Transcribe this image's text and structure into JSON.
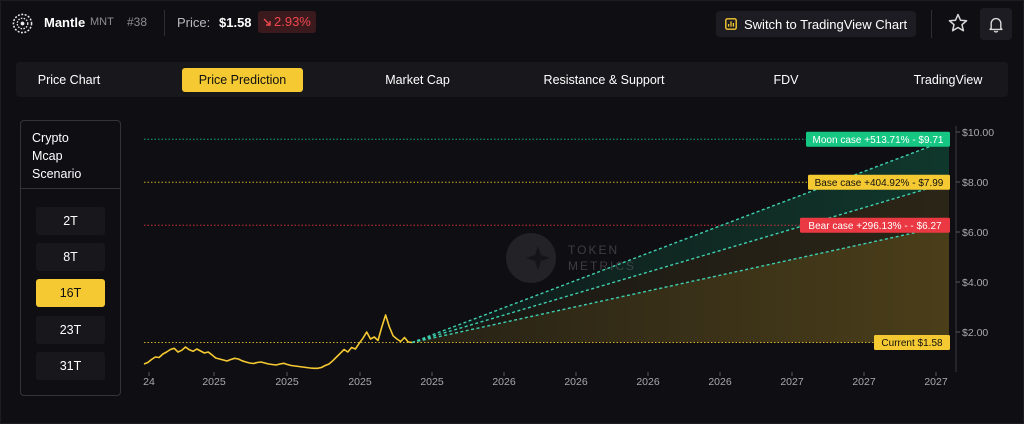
{
  "header": {
    "coin_name": "Mantle",
    "coin_symbol": "MNT",
    "rank": "#38",
    "price_label": "Price:",
    "price_value": "$1.58",
    "price_change": "2.93%",
    "price_change_direction": "down",
    "tradingview_button": "Switch to TradingView Chart",
    "icons": [
      "mantle-logo-icon",
      "chart-bar-icon",
      "star-icon",
      "bell-icon"
    ]
  },
  "tabs": [
    {
      "label": "Price Chart",
      "active": false
    },
    {
      "label": "Price Prediction",
      "active": true
    },
    {
      "label": "Market Cap",
      "active": false
    },
    {
      "label": "Resistance & Support",
      "active": false
    },
    {
      "label": "FDV",
      "active": false
    },
    {
      "label": "TradingView",
      "active": false
    }
  ],
  "scenario_panel": {
    "title": "Crypto\nMcap\nScenario",
    "options": [
      {
        "label": "2T",
        "active": false
      },
      {
        "label": "8T",
        "active": false
      },
      {
        "label": "16T",
        "active": true
      },
      {
        "label": "23T",
        "active": false
      },
      {
        "label": "31T",
        "active": false
      }
    ]
  },
  "watermark": {
    "line1": "TOKEN",
    "line2": "METRICS"
  },
  "colors": {
    "accent": "#f5c932",
    "moon": "#16c784",
    "base": "#f5c932",
    "bear": "#ea3943",
    "negative": "#f0474e",
    "background": "#0f0f13"
  },
  "chart_data": {
    "type": "line",
    "x_tick_labels": [
      "24",
      "2025",
      "2025",
      "2025",
      "2025",
      "2026",
      "2026",
      "2026",
      "2026",
      "2027",
      "2027",
      "2027"
    ],
    "y_tick_labels": [
      "$2.00",
      "$4.00",
      "$6.00",
      "$8.00",
      "$10.00"
    ],
    "ylim": [
      0.4,
      10.4
    ],
    "price_history": [
      0.72,
      0.78,
      0.9,
      1.0,
      0.98,
      1.12,
      1.2,
      1.3,
      1.35,
      1.2,
      1.27,
      1.4,
      1.29,
      1.23,
      1.32,
      1.24,
      1.16,
      1.2,
      1.09,
      0.96,
      0.92,
      0.88,
      0.84,
      0.9,
      0.95,
      0.92,
      0.85,
      0.8,
      0.76,
      0.74,
      0.78,
      0.8,
      0.76,
      0.72,
      0.7,
      0.68,
      0.72,
      0.75,
      0.7,
      0.66,
      0.64,
      0.62,
      0.6,
      0.58,
      0.56,
      0.55,
      0.55,
      0.58,
      0.66,
      0.72,
      0.85,
      1.0,
      1.15,
      1.3,
      1.2,
      1.38,
      1.32,
      1.55,
      1.75,
      2.0,
      1.72,
      1.8,
      1.66,
      2.2,
      2.68,
      2.2,
      1.85,
      1.72,
      1.62,
      1.78,
      1.6,
      1.58
    ],
    "scenarios": [
      {
        "name": "Moon case",
        "change": "+513.71%",
        "target": 9.71,
        "label": "Moon case +513.71% - $9.71"
      },
      {
        "name": "Base case",
        "change": "+404.92%",
        "target": 7.99,
        "label": "Base case +404.92% - $7.99"
      },
      {
        "name": "Bear case",
        "change": "+296.13%",
        "target": 6.27,
        "label": "Bear case +296.13% - - $6.27"
      }
    ],
    "current": {
      "value": 1.58,
      "label": "Current $1.58"
    }
  }
}
